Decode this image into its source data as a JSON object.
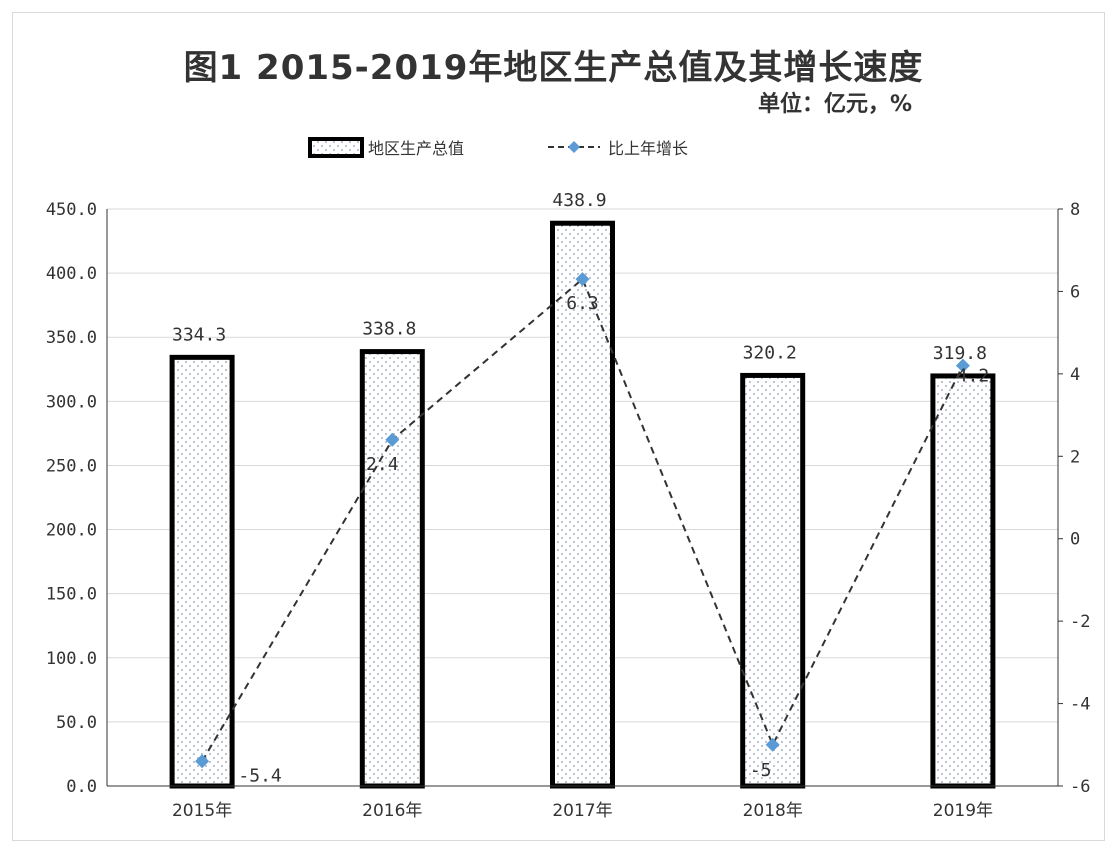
{
  "chart_data": {
    "type": "bar",
    "title": "图1 2015-2019年地区生产总值及其增长速度",
    "unit": "单位：亿元，%",
    "categories": [
      "2015年",
      "2016年",
      "2017年",
      "2018年",
      "2019年"
    ],
    "series": [
      {
        "name": "地区生产总值",
        "type": "bar",
        "axis": "left",
        "values": [
          334.3,
          338.8,
          438.9,
          320.2,
          319.8
        ],
        "labels": [
          "334.3",
          "338.8",
          "438.9",
          "320.2",
          "319.8"
        ]
      },
      {
        "name": "比上年增长",
        "type": "line",
        "axis": "right",
        "values": [
          -5.4,
          2.4,
          6.3,
          -5,
          4.2
        ],
        "labels": [
          "-5.4",
          "2.4",
          "6.3",
          "-5",
          "4.2"
        ]
      }
    ],
    "y_left": {
      "min": 0,
      "max": 450,
      "step": 50,
      "ticks": [
        "0.0",
        "50.0",
        "100.0",
        "150.0",
        "200.0",
        "250.0",
        "300.0",
        "350.0",
        "400.0",
        "450.0"
      ]
    },
    "y_right": {
      "min": -6,
      "max": 8,
      "step": 2,
      "ticks": [
        "-6",
        "-4",
        "-2",
        "0",
        "2",
        "4",
        "6",
        "8"
      ]
    },
    "grid": true,
    "legend_position": "top",
    "colors": {
      "bar_outline": "#000000",
      "bar_dots": "#8a9bb5",
      "line": "#333333",
      "marker": "#5b9bd5",
      "grid": "#d9d9d9"
    }
  }
}
